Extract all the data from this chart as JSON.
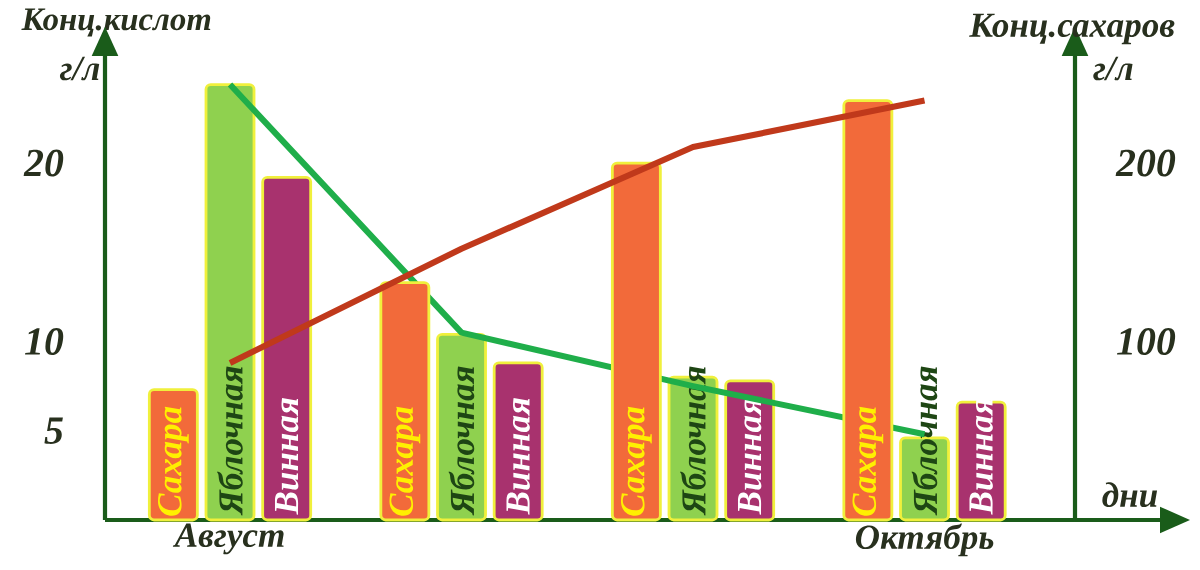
{
  "chart_data": {
    "type": "bar",
    "categories": [
      "Август",
      null,
      null,
      "Октябрь"
    ],
    "ylabel": "Конц.кислот",
    "y2label": "Конц.сахаров",
    "xlabel": "дни",
    "annotations": [
      "г/л",
      "г/л"
    ],
    "ylim": [
      0,
      26
    ],
    "yticks": [
      5,
      10,
      20
    ],
    "y2lim": [
      0,
      260
    ],
    "y2ticks": [
      100,
      200
    ],
    "series": [
      {
        "name": "Сахара",
        "color": "#f26a3a",
        "axis": "y2",
        "values": [
          73,
          133,
          200,
          235
        ]
      },
      {
        "name": "Яблочная",
        "color": "#8fd14f",
        "values": [
          24.4,
          10.4,
          8,
          4.6
        ]
      },
      {
        "name": "Винная",
        "color": "#a8326e",
        "values": [
          19.2,
          8.8,
          7.8,
          6.6
        ]
      },
      {
        "type": "line",
        "color": "#1fae4a",
        "values": [
          24.4,
          10.5,
          7.5,
          4.8
        ]
      },
      {
        "type": "line",
        "color": "#c0391b",
        "axis": "y2",
        "values": [
          88,
          152,
          209,
          235
        ]
      }
    ]
  }
}
